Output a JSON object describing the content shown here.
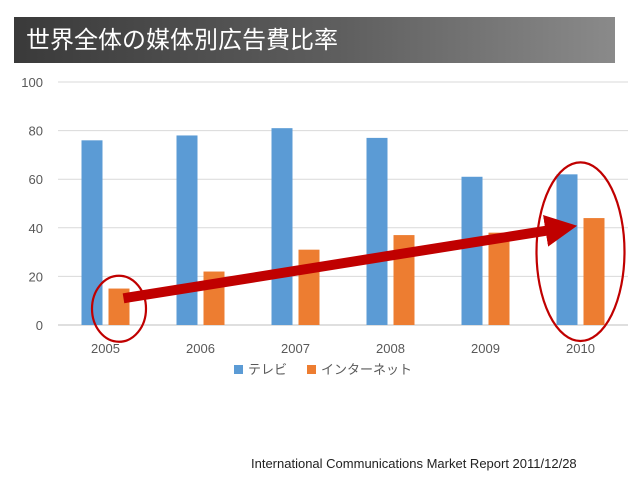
{
  "title": "世界全体の媒体別広告費比率",
  "source": "International Communications Market Report 2011/12/28",
  "chart_data": {
    "type": "bar",
    "title": "世界全体の媒体別広告費比率",
    "categories": [
      "2005",
      "2006",
      "2007",
      "2008",
      "2009",
      "2010"
    ],
    "series": [
      {
        "name": "テレビ",
        "color": "#5B9BD5",
        "values": [
          76,
          78,
          81,
          77,
          61,
          62
        ]
      },
      {
        "name": "インターネット",
        "color": "#ED7D31",
        "values": [
          15,
          22,
          31,
          37,
          38,
          44
        ]
      }
    ],
    "ylim": [
      0,
      100
    ],
    "yticks": [
      0,
      20,
      40,
      60,
      80,
      100
    ],
    "grid": true,
    "legend": "bottom-center",
    "annotations": {
      "arrow_color": "#C00000",
      "circle_color": "#C00000",
      "arrow": {
        "from": [
          "2005",
          11
        ],
        "to": [
          "2010",
          40
        ]
      },
      "circles": [
        {
          "category": "2005",
          "around": "インターネット"
        },
        {
          "category": "2010",
          "around": "both"
        }
      ]
    }
  }
}
